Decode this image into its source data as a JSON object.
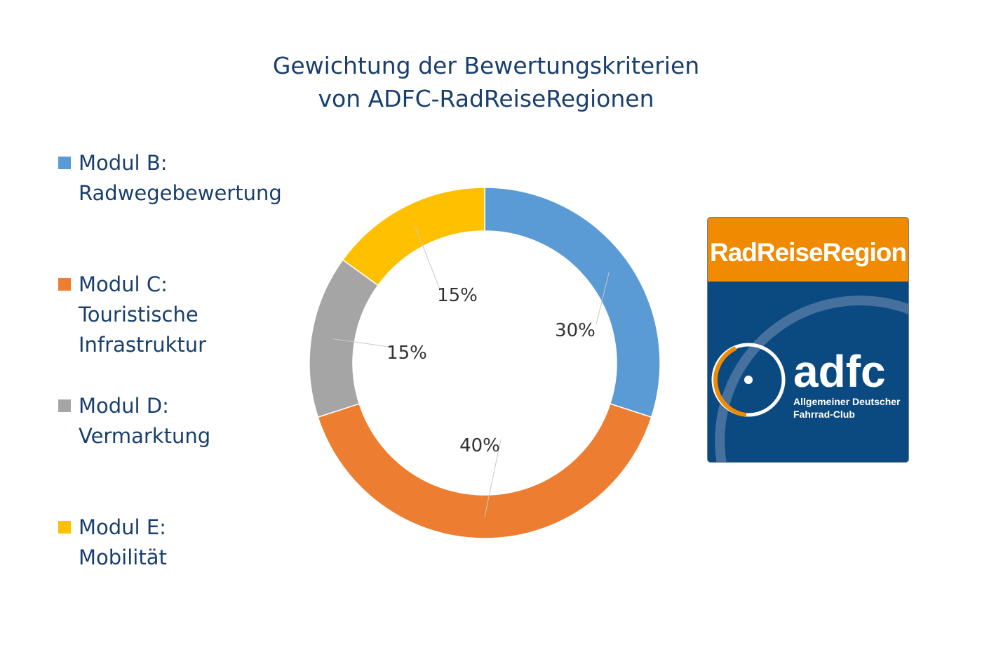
{
  "chart_data": {
    "type": "pie",
    "variant": "donut",
    "title": "Gewichtung der Bewertungskriterien\nvon ADFC-RadReiseRegionen",
    "title_lines": [
      "Gewichtung der Bewertungskriterien",
      "von ADFC-RadReiseRegionen"
    ],
    "legend_placement": "left",
    "slices": [
      {
        "name": "Modul B: Radwegebewertung",
        "legend_lines": [
          "Modul B:",
          "Radwegebewertung"
        ],
        "value": 30,
        "label": "30%",
        "color": "#5b9bd5"
      },
      {
        "name": "Modul C: Touristische Infrastruktur",
        "legend_lines": [
          "Modul C:",
          "Touristische",
          "Infrastruktur"
        ],
        "value": 40,
        "label": "40%",
        "color": "#ed7d31"
      },
      {
        "name": "Modul D: Vermarktung",
        "legend_lines": [
          "Modul D:",
          "Vermarktung"
        ],
        "value": 15,
        "label": "15%",
        "color": "#a5a5a5"
      },
      {
        "name": "Modul E: Mobilität",
        "legend_lines": [
          "Modul E:",
          "Mobilität"
        ],
        "value": 15,
        "label": "15%",
        "color": "#ffc000"
      }
    ]
  },
  "logo": {
    "banner": "RadReiseRegion",
    "wordmark": "adfc",
    "subtitle_lines": [
      "Allgemeiner Deutscher",
      "Fahrrad-Club"
    ],
    "colors": {
      "orange": "#f08a00",
      "blue": "#0b4a80"
    }
  }
}
